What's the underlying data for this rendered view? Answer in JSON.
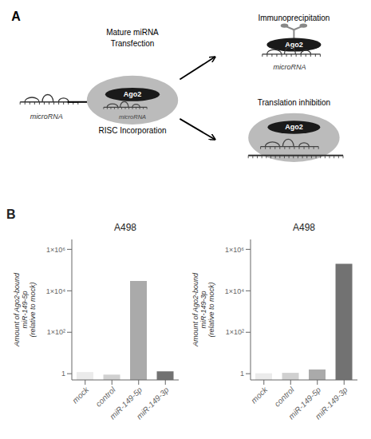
{
  "annotations": [
    "A",
    "Mature miRNA",
    "Transfection",
    "microRNA",
    "Ago2",
    "RISC Incorporation",
    "Immunoprecipitation",
    "Translation inhibition",
    "B"
  ],
  "chart_data": [
    {
      "type": "bar",
      "title": "A498",
      "ylabel": "Amount of Ago2-bound\nmiR-149-5p\n(relative to mock)",
      "categories": [
        "mock",
        "control",
        "miR-149-5p",
        "miR-149-3p"
      ],
      "values": [
        1.2,
        0.9,
        30000,
        1.3
      ],
      "colors": [
        "#ebebeb",
        "#d0d0d0",
        "#aaaaaa",
        "#727272"
      ],
      "log": "y",
      "ylim": [
        0.5,
        3000000
      ],
      "yticks": [
        1,
        {
          "value": 100,
          "label": "1×10²"
        },
        {
          "value": 10000,
          "label": "1×10⁴"
        },
        {
          "value": 1000000,
          "label": "1×10⁶"
        }
      ],
      "grid": false
    },
    {
      "type": "bar",
      "title": "A498",
      "ylabel": "Amount of Ago2-bound\nmiR-149-3p\n(relative to mock)",
      "categories": [
        "mock",
        "control",
        "miR-149-5p",
        "miR-149-3p"
      ],
      "values": [
        1.05,
        1.1,
        1.6,
        200000
      ],
      "colors": [
        "#ebebeb",
        "#d0d0d0",
        "#aaaaaa",
        "#727272"
      ],
      "log": "y",
      "ylim": [
        0.5,
        3000000
      ],
      "yticks": [
        1,
        {
          "value": 100,
          "label": "1×10²"
        },
        {
          "value": 10000,
          "label": "1×10⁴"
        },
        {
          "value": 1000000,
          "label": "1×10⁶"
        }
      ],
      "grid": false
    }
  ]
}
